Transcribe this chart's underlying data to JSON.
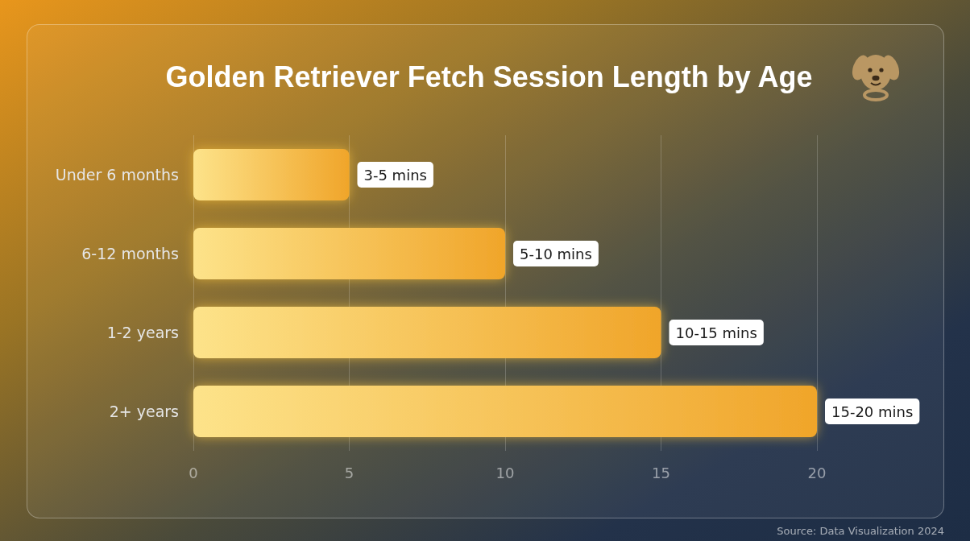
{
  "chart_data": {
    "type": "bar",
    "orientation": "horizontal",
    "title": "Golden Retriever Fetch Session Length by Age",
    "categories": [
      "Under 6 months",
      "6-12 months",
      "1-2 years",
      "2+ years"
    ],
    "values": [
      5,
      10,
      15,
      20
    ],
    "value_labels": [
      "3-5 mins",
      "5-10 mins",
      "10-15 mins",
      "15-20 mins"
    ],
    "color": "#f0a52a",
    "xlim": [
      0,
      20
    ],
    "xticks": [
      0,
      5,
      10,
      15,
      20
    ],
    "grid": "x",
    "annotations": [
      "Source: Data Visualization 2024"
    ]
  }
}
